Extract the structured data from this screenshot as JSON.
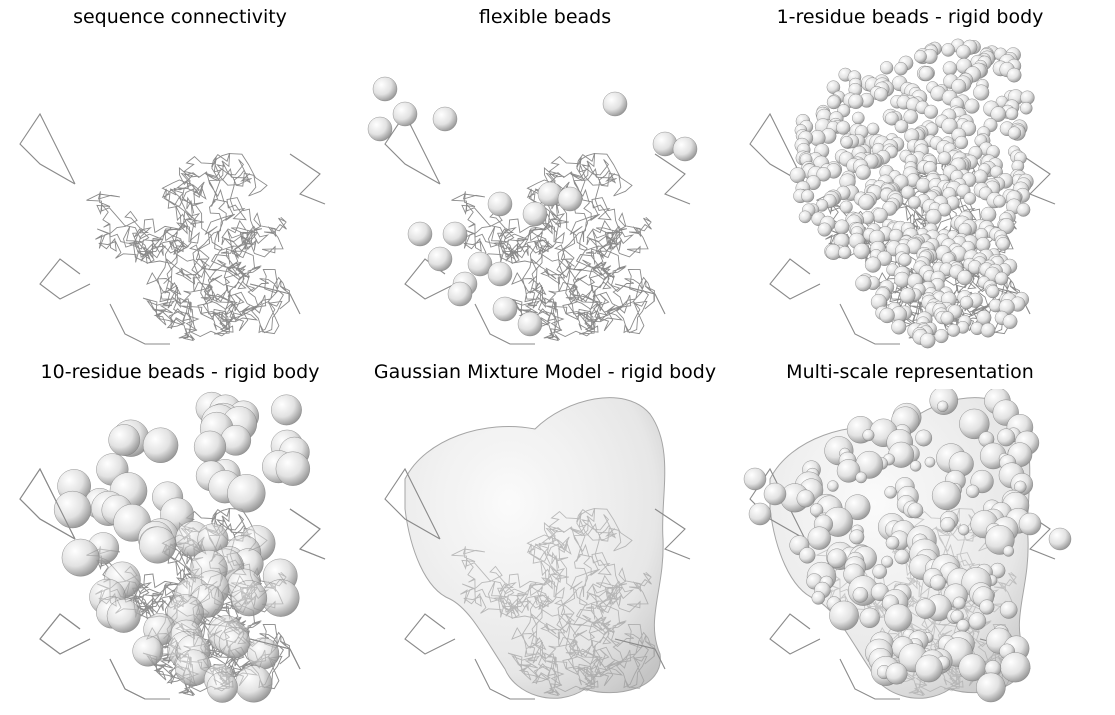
{
  "panels": [
    {
      "id": "p1",
      "title": "sequence connectivity",
      "beads": "none"
    },
    {
      "id": "p2",
      "title": "flexible beads",
      "beads": "sparse"
    },
    {
      "id": "p3",
      "title": "1-residue beads - rigid body",
      "beads": "dense-small"
    },
    {
      "id": "p4",
      "title": "10-residue beads - rigid body",
      "beads": "large"
    },
    {
      "id": "p5",
      "title": "Gaussian Mixture Model - rigid body",
      "beads": "surface"
    },
    {
      "id": "p6",
      "title": "Multi-scale representation",
      "beads": "mixed"
    }
  ],
  "colors": {
    "trace": "#8a8a8a",
    "bead_light": "#ffffff",
    "bead_dark": "#9a9a9a",
    "surface": "#eeeeee"
  }
}
